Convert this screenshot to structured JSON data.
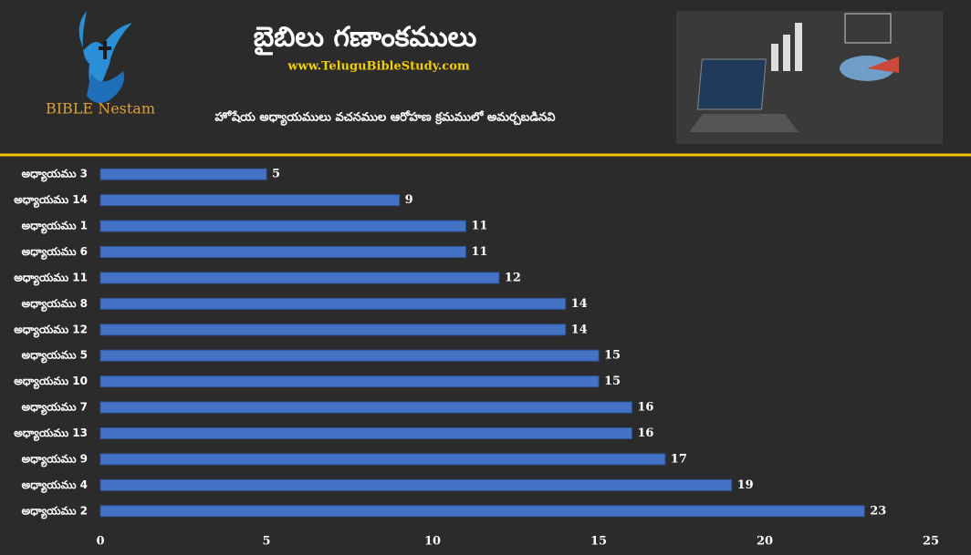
{
  "logo": "BIBLE Nestam",
  "chart_data": {
    "type": "bar",
    "orientation": "horizontal",
    "title": "బైబిలు గణాంకములు",
    "website": "www.TeluguBibleStudy.com",
    "subtitle": "హోషేయ అధ్యాయములు వచనముల ఆరోహణ క్రమములో అమర్చబడినవి",
    "categories": [
      "అధ్యాయము 3",
      "అధ్యాయము 14",
      "అధ్యాయము 1",
      "అధ్యాయము 6",
      "అధ్యాయము 11",
      "అధ్యాయము 8",
      "అధ్యాయము 12",
      "అధ్యాయము 5",
      "అధ్యాయము 10",
      "అధ్యాయము 7",
      "అధ్యాయము 13",
      "అధ్యాయము 9",
      "అధ్యాయము 4",
      "అధ్యాయము 2"
    ],
    "values": [
      5,
      9,
      11,
      11,
      12,
      14,
      14,
      15,
      15,
      16,
      16,
      17,
      19,
      23
    ],
    "color": "#4472c4",
    "xlim": [
      0,
      25
    ],
    "xticks": [
      0,
      5,
      10,
      15,
      20,
      25
    ],
    "grid": false
  }
}
